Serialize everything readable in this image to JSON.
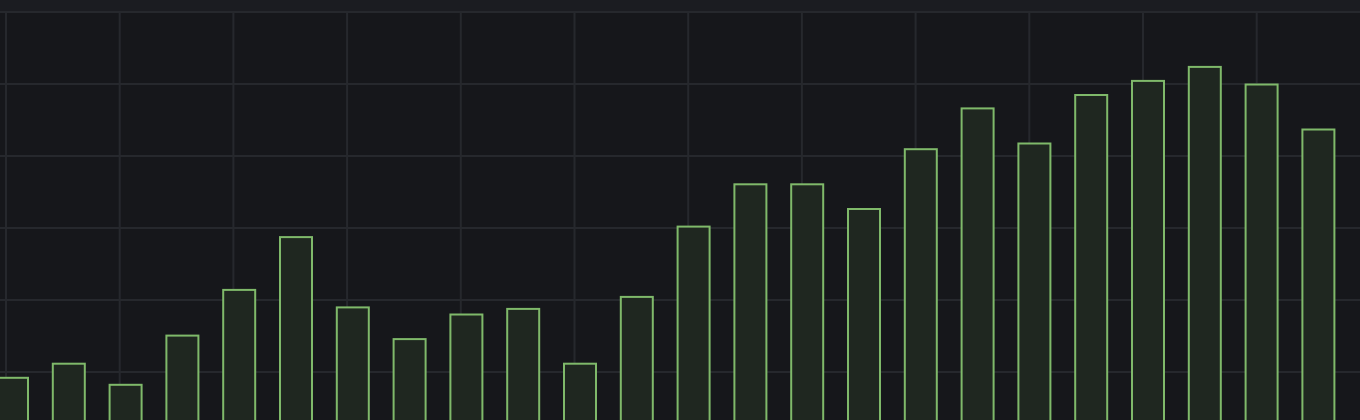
{
  "colors": {
    "background": "#16171b",
    "top_band": "#1b1c21",
    "grid": "#26282d",
    "bar_stroke": "#7fb96a",
    "bar_fill": "#1f2720"
  },
  "chart_data": {
    "type": "bar",
    "title": "",
    "xlabel": "",
    "ylabel": "",
    "grid": true,
    "legend": "none",
    "values": [
      0.6,
      0.8,
      0.5,
      1.2,
      1.85,
      2.6,
      1.6,
      1.15,
      1.5,
      1.58,
      0.8,
      1.75,
      2.75,
      3.35,
      3.35,
      3.0,
      3.85,
      4.43,
      3.93,
      4.62,
      4.82,
      5.02,
      4.77,
      4.13
    ],
    "ylim": [
      0,
      5.8
    ]
  }
}
